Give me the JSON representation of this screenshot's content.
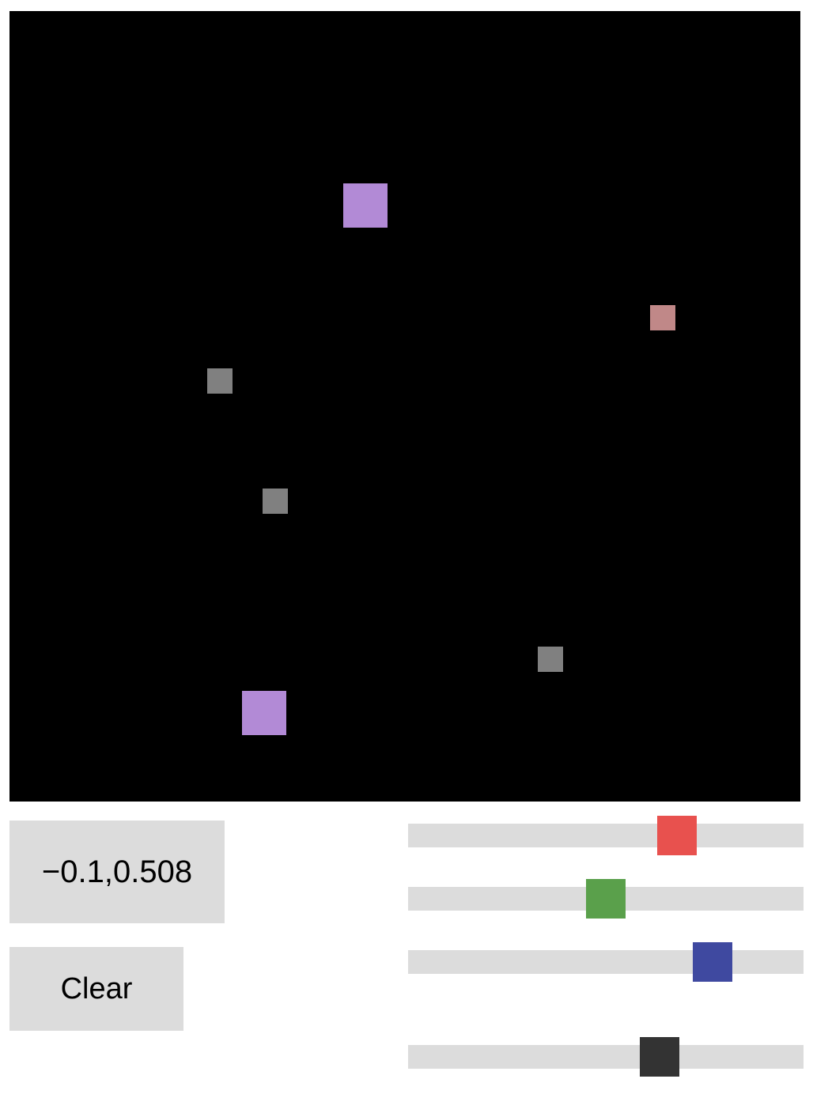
{
  "canvas": {
    "background": "#000000",
    "squares": [
      {
        "name": "purple-square-upper",
        "color": "#b28ad6"
      },
      {
        "name": "pink-square",
        "color": "#c08888"
      },
      {
        "name": "gray-square-upper-left",
        "color": "#808080"
      },
      {
        "name": "gray-square-middle-left",
        "color": "#808080"
      },
      {
        "name": "gray-square-lower-right",
        "color": "#808080"
      },
      {
        "name": "purple-square-lower",
        "color": "#b28ad6"
      }
    ]
  },
  "coordinates": {
    "text": "−0.1,0.508"
  },
  "controls": {
    "clear_label": "Clear"
  },
  "sliders": [
    {
      "name": "red-slider",
      "color": "#e8514e",
      "value": 0.7
    },
    {
      "name": "green-slider",
      "color": "#5aa04b",
      "value": 0.5
    },
    {
      "name": "blue-slider",
      "color": "#3f49a0",
      "value": 0.8
    },
    {
      "name": "dark-slider",
      "color": "#333333",
      "value": 0.65
    }
  ]
}
